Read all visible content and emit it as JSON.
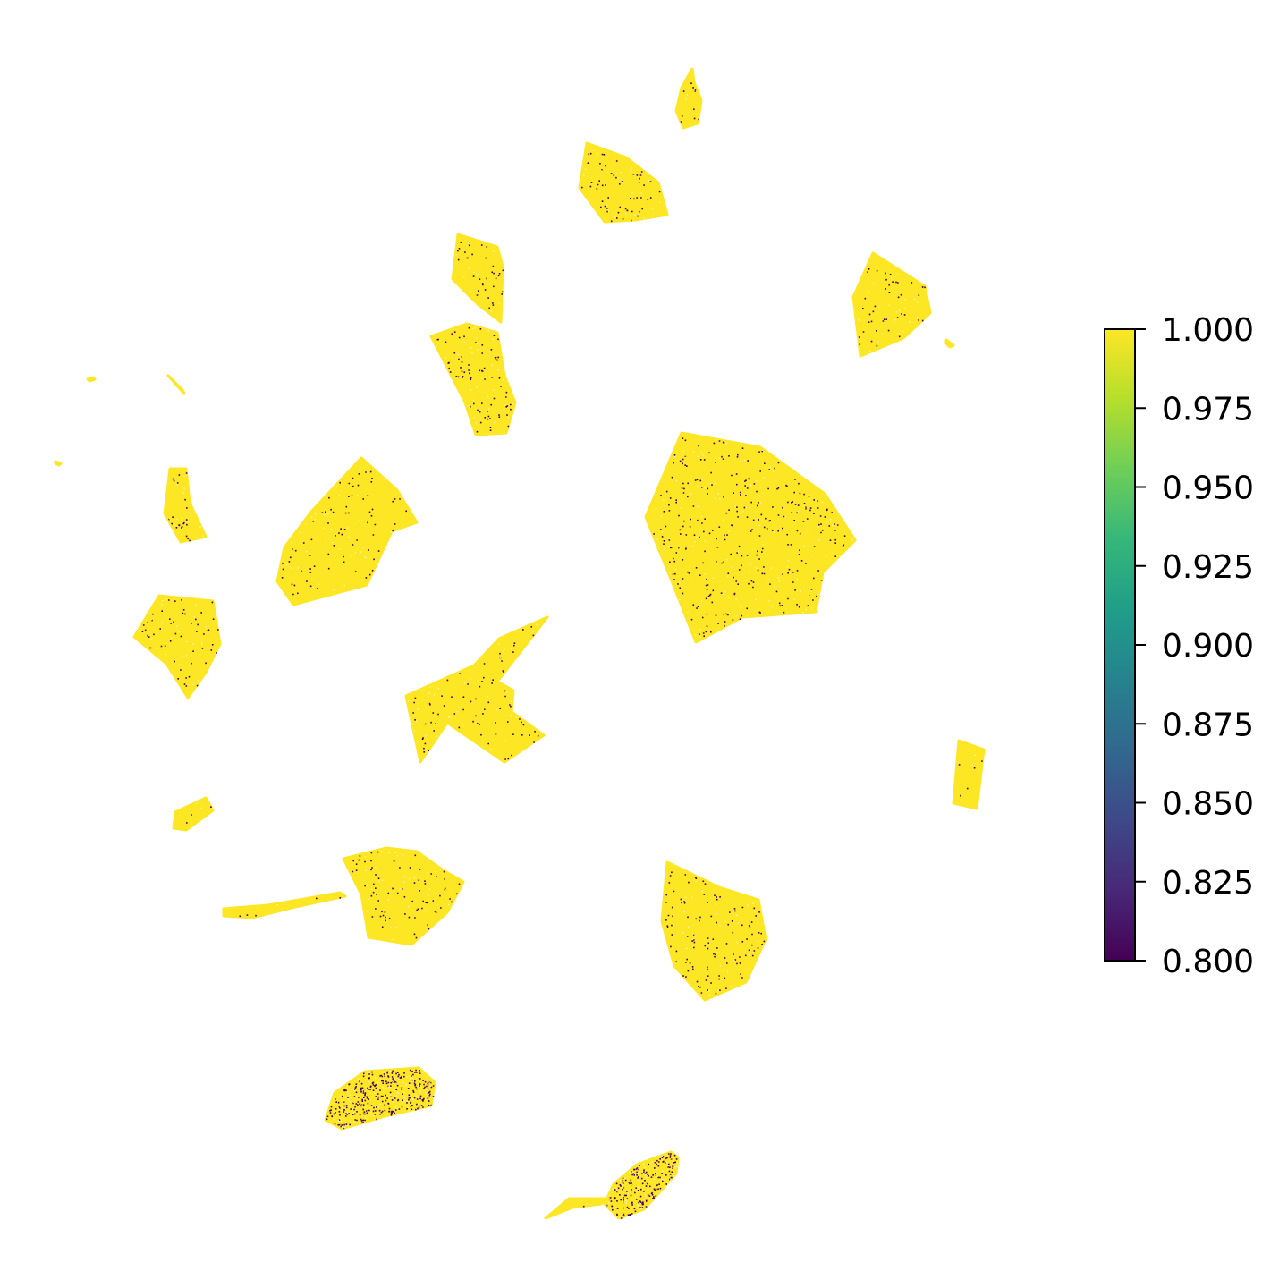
{
  "chart_data": {
    "type": "scatter",
    "title": "",
    "xlabel": "",
    "ylabel": "",
    "axes_visible": false,
    "grid": false,
    "colormap": "viridis",
    "colormap_stops": [
      "#440154",
      "#482878",
      "#3e4989",
      "#31688e",
      "#26828e",
      "#1f9e89",
      "#35b779",
      "#6ece58",
      "#b5de2b",
      "#fde725"
    ],
    "point_color_dominant": "#fde725",
    "point_color_low": "#440154",
    "colorbar": {
      "position": "right",
      "vmin": 0.8,
      "vmax": 1.0,
      "ticks": [
        "0.800",
        "0.825",
        "0.850",
        "0.875",
        "0.900",
        "0.925",
        "0.950",
        "0.975",
        "1.000"
      ]
    },
    "clusters": [
      {
        "id": "c1",
        "outline": [
          [
            774,
            77
          ],
          [
            762,
            98
          ],
          [
            756,
            124
          ],
          [
            764,
            143
          ],
          [
            780,
            138
          ],
          [
            784,
            112
          ],
          [
            776,
            92
          ]
        ],
        "low_fraction": 0.04
      },
      {
        "id": "c2",
        "outline": [
          [
            656,
            160
          ],
          [
            648,
            210
          ],
          [
            676,
            248
          ],
          [
            710,
            246
          ],
          [
            746,
            240
          ],
          [
            736,
            204
          ],
          [
            700,
            176
          ]
        ],
        "low_fraction": 0.05
      },
      {
        "id": "c3",
        "outline": [
          [
            512,
            262
          ],
          [
            506,
            312
          ],
          [
            534,
            340
          ],
          [
            560,
            360
          ],
          [
            562,
            298
          ],
          [
            556,
            276
          ]
        ],
        "low_fraction": 0.05
      },
      {
        "id": "c4",
        "outline": [
          [
            482,
            376
          ],
          [
            520,
            450
          ],
          [
            532,
            486
          ],
          [
            566,
            484
          ],
          [
            576,
            450
          ],
          [
            564,
            420
          ],
          [
            556,
            372
          ],
          [
            522,
            362
          ]
        ],
        "low_fraction": 0.06
      },
      {
        "id": "c5",
        "outline": [
          [
            976,
            283
          ],
          [
            954,
            332
          ],
          [
            962,
            398
          ],
          [
            1010,
            378
          ],
          [
            1040,
            350
          ],
          [
            1034,
            320
          ]
        ],
        "low_fraction": 0.04
      },
      {
        "id": "c6",
        "outline": [
          [
            762,
            484
          ],
          [
            722,
            578
          ],
          [
            752,
            652
          ],
          [
            778,
            718
          ],
          [
            830,
            690
          ],
          [
            912,
            684
          ],
          [
            920,
            640
          ],
          [
            956,
            604
          ],
          [
            922,
            552
          ],
          [
            850,
            500
          ]
        ],
        "low_fraction": 0.05
      },
      {
        "id": "c7",
        "outline": [
          [
            404,
            512
          ],
          [
            348,
            572
          ],
          [
            318,
            612
          ],
          [
            310,
            650
          ],
          [
            328,
            676
          ],
          [
            410,
            654
          ],
          [
            438,
            594
          ],
          [
            466,
            584
          ],
          [
            444,
            548
          ]
        ],
        "low_fraction": 0.03
      },
      {
        "id": "c8",
        "outline": [
          [
            190,
            524
          ],
          [
            184,
            574
          ],
          [
            202,
            606
          ],
          [
            230,
            600
          ],
          [
            212,
            562
          ],
          [
            208,
            524
          ]
        ],
        "low_fraction": 0.06
      },
      {
        "id": "c9",
        "outline": [
          [
            178,
            666
          ],
          [
            150,
            712
          ],
          [
            186,
            742
          ],
          [
            210,
            780
          ],
          [
            230,
            752
          ],
          [
            246,
            720
          ],
          [
            238,
            672
          ]
        ],
        "low_fraction": 0.05
      },
      {
        "id": "c10",
        "outline": [
          [
            612,
            690
          ],
          [
            558,
            714
          ],
          [
            530,
            744
          ],
          [
            454,
            778
          ],
          [
            470,
            852
          ],
          [
            500,
            808
          ],
          [
            564,
            852
          ],
          [
            608,
            822
          ],
          [
            572,
            796
          ],
          [
            574,
            772
          ],
          [
            556,
            762
          ]
        ],
        "low_fraction": 0.04
      },
      {
        "id": "c11",
        "outline": [
          [
            1072,
            828
          ],
          [
            1066,
            898
          ],
          [
            1092,
            904
          ],
          [
            1100,
            838
          ]
        ],
        "low_fraction": 0.02
      },
      {
        "id": "c12",
        "outline": [
          [
            230,
            892
          ],
          [
            196,
            908
          ],
          [
            194,
            926
          ],
          [
            208,
            928
          ],
          [
            238,
            906
          ]
        ],
        "low_fraction": 0.06
      },
      {
        "id": "c13",
        "outline": [
          [
            432,
            948
          ],
          [
            384,
            960
          ],
          [
            404,
            1000
          ],
          [
            412,
            1048
          ],
          [
            460,
            1056
          ],
          [
            500,
            1020
          ],
          [
            518,
            986
          ],
          [
            494,
            972
          ],
          [
            466,
            952
          ]
        ],
        "low_fraction": 0.05
      },
      {
        "id": "c14",
        "outline": [
          [
            250,
            1016
          ],
          [
            250,
            1024
          ],
          [
            282,
            1026
          ],
          [
            330,
            1014
          ],
          [
            386,
            1002
          ],
          [
            380,
            998
          ],
          [
            300,
            1012
          ]
        ],
        "low_fraction": 0.02
      },
      {
        "id": "c15",
        "outline": [
          [
            746,
            964
          ],
          [
            740,
            1030
          ],
          [
            754,
            1080
          ],
          [
            788,
            1118
          ],
          [
            834,
            1098
          ],
          [
            856,
            1050
          ],
          [
            848,
            1006
          ],
          [
            804,
            992
          ]
        ],
        "low_fraction": 0.05
      },
      {
        "id": "c16",
        "outline": [
          [
            408,
            1198
          ],
          [
            374,
            1222
          ],
          [
            364,
            1252
          ],
          [
            382,
            1262
          ],
          [
            430,
            1248
          ],
          [
            482,
            1236
          ],
          [
            486,
            1210
          ],
          [
            468,
            1194
          ],
          [
            438,
            1196
          ]
        ],
        "low_fraction": 0.3
      },
      {
        "id": "c17",
        "outline": [
          [
            750,
            1288
          ],
          [
            712,
            1302
          ],
          [
            686,
            1324
          ],
          [
            676,
            1346
          ],
          [
            692,
            1362
          ],
          [
            720,
            1352
          ],
          [
            756,
            1312
          ],
          [
            758,
            1294
          ]
        ],
        "low_fraction": 0.3
      },
      {
        "id": "c18",
        "outline": [
          [
            610,
            1362
          ],
          [
            636,
            1340
          ],
          [
            680,
            1340
          ],
          [
            672,
            1346
          ],
          [
            640,
            1350
          ],
          [
            620,
            1358
          ]
        ],
        "low_fraction": 0.02
      },
      {
        "id": "c19",
        "outline": [
          [
            188,
            420
          ],
          [
            206,
            440
          ],
          [
            204,
            436
          ],
          [
            190,
            422
          ]
        ],
        "low_fraction": 0.0
      },
      {
        "id": "c20",
        "outline": [
          [
            98,
            424
          ],
          [
            104,
            422
          ],
          [
            106,
            424
          ],
          [
            100,
            426
          ]
        ],
        "low_fraction": 0.0
      },
      {
        "id": "c21",
        "outline": [
          [
            62,
            516
          ],
          [
            68,
            518
          ],
          [
            66,
            520
          ],
          [
            62,
            518
          ]
        ],
        "low_fraction": 0.0
      },
      {
        "id": "c22",
        "outline": [
          [
            1058,
            380
          ],
          [
            1066,
            386
          ],
          [
            1062,
            388
          ],
          [
            1058,
            384
          ]
        ],
        "low_fraction": 0.0
      }
    ]
  }
}
